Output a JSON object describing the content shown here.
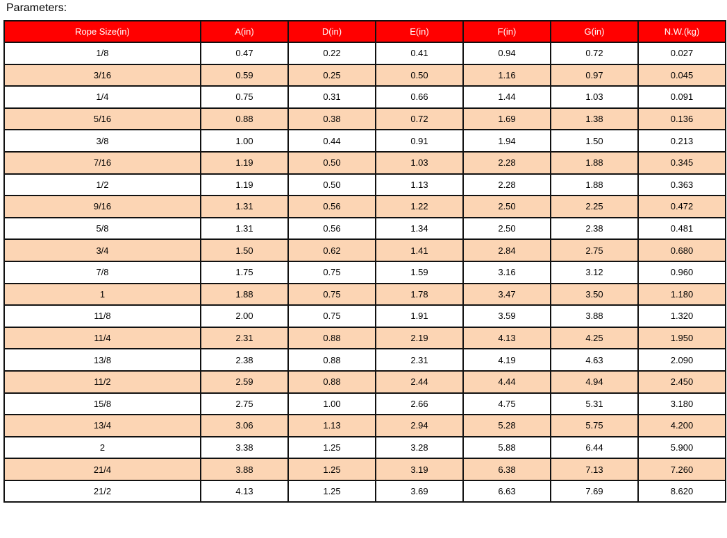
{
  "title": "Parameters:",
  "colors": {
    "header_bg": "#ff0000",
    "header_text": "#ffffff",
    "alt_row_bg": "#fcd5b4",
    "row_bg": "#ffffff"
  },
  "table": {
    "headers": [
      "Rope Size(in)",
      "A(in)",
      "D(in)",
      "E(in)",
      "F(in)",
      "G(in)",
      "N.W.(kg)"
    ],
    "rows": [
      [
        "1/8",
        "0.47",
        "0.22",
        "0.41",
        "0.94",
        "0.72",
        "0.027"
      ],
      [
        "3/16",
        "0.59",
        "0.25",
        "0.50",
        "1.16",
        "0.97",
        "0.045"
      ],
      [
        "1/4",
        "0.75",
        "0.31",
        "0.66",
        "1.44",
        "1.03",
        "0.091"
      ],
      [
        "5/16",
        "0.88",
        "0.38",
        "0.72",
        "1.69",
        "1.38",
        "0.136"
      ],
      [
        "3/8",
        "1.00",
        "0.44",
        "0.91",
        "1.94",
        "1.50",
        "0.213"
      ],
      [
        "7/16",
        "1.19",
        "0.50",
        "1.03",
        "2.28",
        "1.88",
        "0.345"
      ],
      [
        "1/2",
        "1.19",
        "0.50",
        "1.13",
        "2.28",
        "1.88",
        "0.363"
      ],
      [
        "9/16",
        "1.31",
        "0.56",
        "1.22",
        "2.50",
        "2.25",
        "0.472"
      ],
      [
        "5/8",
        "1.31",
        "0.56",
        "1.34",
        "2.50",
        "2.38",
        "0.481"
      ],
      [
        "3/4",
        "1.50",
        "0.62",
        "1.41",
        "2.84",
        "2.75",
        "0.680"
      ],
      [
        "7/8",
        "1.75",
        "0.75",
        "1.59",
        "3.16",
        "3.12",
        "0.960"
      ],
      [
        "1",
        "1.88",
        "0.75",
        "1.78",
        "3.47",
        "3.50",
        "1.180"
      ],
      [
        "11/8",
        "2.00",
        "0.75",
        "1.91",
        "3.59",
        "3.88",
        "1.320"
      ],
      [
        "11/4",
        "2.31",
        "0.88",
        "2.19",
        "4.13",
        "4.25",
        "1.950"
      ],
      [
        "13/8",
        "2.38",
        "0.88",
        "2.31",
        "4.19",
        "4.63",
        "2.090"
      ],
      [
        "11/2",
        "2.59",
        "0.88",
        "2.44",
        "4.44",
        "4.94",
        "2.450"
      ],
      [
        "15/8",
        "2.75",
        "1.00",
        "2.66",
        "4.75",
        "5.31",
        "3.180"
      ],
      [
        "13/4",
        "3.06",
        "1.13",
        "2.94",
        "5.28",
        "5.75",
        "4.200"
      ],
      [
        "2",
        "3.38",
        "1.25",
        "3.28",
        "5.88",
        "6.44",
        "5.900"
      ],
      [
        "21/4",
        "3.88",
        "1.25",
        "3.19",
        "6.38",
        "7.13",
        "7.260"
      ],
      [
        "21/2",
        "4.13",
        "1.25",
        "3.69",
        "6.63",
        "7.69",
        "8.620"
      ]
    ]
  }
}
